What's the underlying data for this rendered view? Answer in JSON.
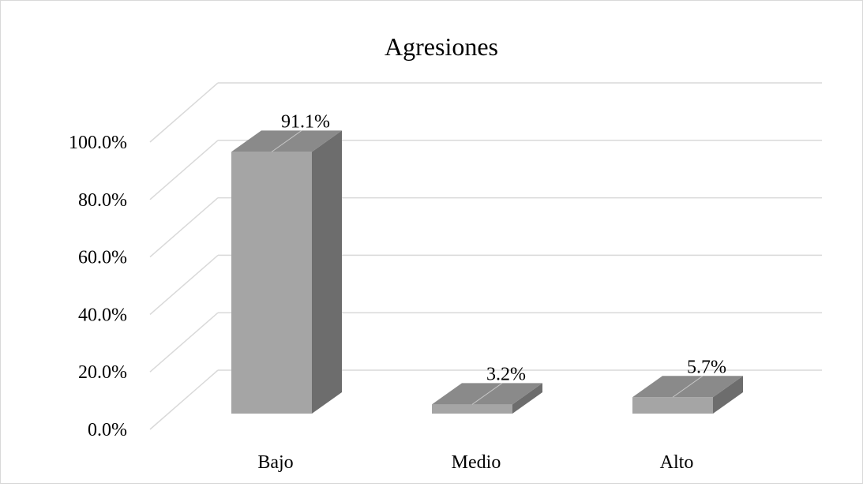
{
  "chart_data": {
    "type": "bar",
    "variant": "3d-column",
    "title": "Agresiones",
    "xlabel": "",
    "ylabel": "",
    "categories": [
      "Bajo",
      "Medio",
      "Alto"
    ],
    "values": [
      91.1,
      3.2,
      5.7
    ],
    "data_labels": [
      "91.1%",
      "3.2%",
      "5.7%"
    ],
    "y_ticks": [
      "0.0%",
      "20.0%",
      "40.0%",
      "60.0%",
      "80.0%",
      "100.0%"
    ],
    "ylim": [
      0,
      100
    ],
    "grid": true,
    "legend": "none",
    "colors": {
      "front": "#a5a5a5",
      "side": "#6d6d6d",
      "top": "#8a8a8a",
      "grid": "#d9d9d9"
    }
  }
}
